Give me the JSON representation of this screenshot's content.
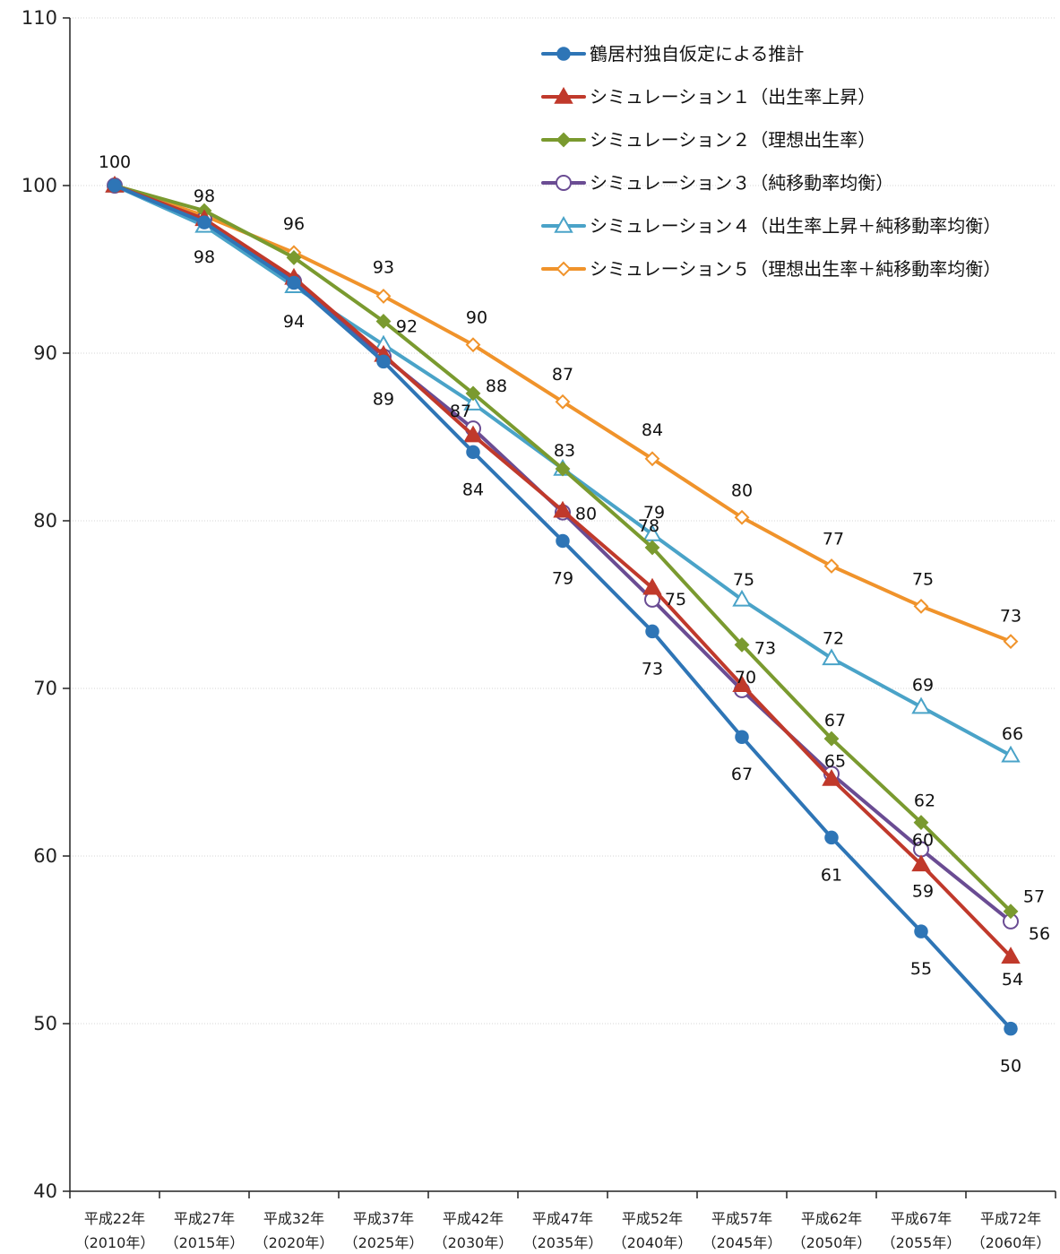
{
  "chart_data": {
    "type": "line",
    "title": "",
    "xlabel": "",
    "ylabel": "",
    "ylim": [
      40,
      110
    ],
    "yticks": [
      40,
      50,
      60,
      70,
      80,
      90,
      100,
      110
    ],
    "grid": true,
    "legend_position": "top-right",
    "categories": [
      {
        "line1": "平成22年",
        "line2": "（2010年）"
      },
      {
        "line1": "平成27年",
        "line2": "（2015年）"
      },
      {
        "line1": "平成32年",
        "line2": "（2020年）"
      },
      {
        "line1": "平成37年",
        "line2": "（2025年）"
      },
      {
        "line1": "平成42年",
        "line2": "（2030年）"
      },
      {
        "line1": "平成47年",
        "line2": "（2035年）"
      },
      {
        "line1": "平成52年",
        "line2": "（2040年）"
      },
      {
        "line1": "平成57年",
        "line2": "（2045年）"
      },
      {
        "line1": "平成62年",
        "line2": "（2050年）"
      },
      {
        "line1": "平成67年",
        "line2": "（2055年）"
      },
      {
        "line1": "平成72年",
        "line2": "（2060年）"
      }
    ],
    "series": [
      {
        "name": "鶴居村独自仮定による推計",
        "color": "#2e75b6",
        "marker": "circle-filled",
        "values": [
          100,
          97.8,
          94.2,
          89.5,
          84.1,
          78.8,
          73.4,
          67.1,
          61.1,
          55.5,
          49.7
        ],
        "labels": [
          "",
          "",
          "",
          "89",
          "84",
          "79",
          "73",
          "67",
          "61",
          "55",
          "50"
        ]
      },
      {
        "name": "シミュレーション１（出生率上昇）",
        "color": "#c0392b",
        "marker": "triangle-filled",
        "values": [
          100,
          98.0,
          94.5,
          89.9,
          85.1,
          80.6,
          76.0,
          70.2,
          64.6,
          59.5,
          54.0
        ],
        "labels": [
          "",
          "",
          "",
          "",
          "",
          "",
          "",
          "",
          "",
          "59",
          "54"
        ]
      },
      {
        "name": "シミュレーション２（理想出生率）",
        "color": "#7a9a2f",
        "marker": "diamond-filled",
        "values": [
          100,
          98.5,
          95.7,
          91.9,
          87.6,
          83.1,
          78.4,
          72.6,
          67.0,
          62.0,
          56.7
        ],
        "labels": [
          "",
          "98",
          "",
          "92",
          "88",
          "",
          "78",
          "73",
          "67",
          "62",
          "57"
        ]
      },
      {
        "name": "シミュレーション３（純移動率均衡）",
        "color": "#6a4c93",
        "marker": "circle-open",
        "values": [
          100,
          98.0,
          94.3,
          89.8,
          85.5,
          80.5,
          75.3,
          69.9,
          64.9,
          60.4,
          56.1
        ],
        "labels": [
          "",
          "",
          "",
          "",
          "",
          "80",
          "75",
          "70",
          "65",
          "60",
          "56"
        ]
      },
      {
        "name": "シミュレーション４（出生率上昇＋純移動率均衡）",
        "color": "#4aa3c8",
        "marker": "triangle-open",
        "values": [
          100,
          97.6,
          94.0,
          90.5,
          87.0,
          83.1,
          79.2,
          75.3,
          71.8,
          68.9,
          66.0
        ],
        "labels": [
          "",
          "98",
          "94",
          "",
          "87",
          "83",
          "79",
          "75",
          "72",
          "69",
          "66"
        ]
      },
      {
        "name": "シミュレーション５（理想出生率＋純移動率均衡）",
        "color": "#f0932b",
        "marker": "diamond-open",
        "values": [
          100,
          98.2,
          96.0,
          93.4,
          90.5,
          87.1,
          83.7,
          80.2,
          77.3,
          74.9,
          72.8
        ],
        "labels": [
          "100",
          "",
          "96",
          "93",
          "90",
          "87",
          "84",
          "80",
          "77",
          "75",
          "73"
        ]
      }
    ]
  }
}
